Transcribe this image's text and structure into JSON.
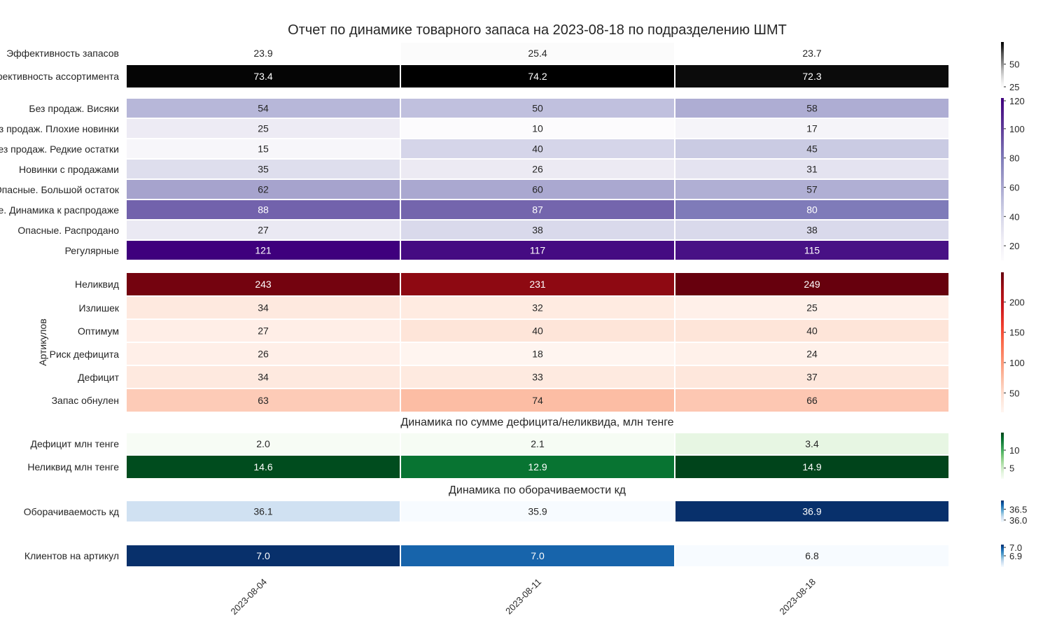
{
  "chart_data": {
    "type": "heatmap",
    "title": "Отчет по динамике товарного запаса на 2023-08-18 по подразделению ШМТ",
    "columns": [
      "2023-08-04",
      "2023-08-11",
      "2023-08-18"
    ],
    "blocks": [
      {
        "name": "efficiency",
        "colormap": "Greys",
        "vmin": 23.7,
        "vmax": 74.2,
        "colorbar_ticks": [
          "25",
          "50"
        ],
        "rows": [
          {
            "label": "Эффективность запасов",
            "values": [
              23.9,
              25.4,
              23.7
            ],
            "display": [
              "23.9",
              "25.4",
              "23.7"
            ]
          },
          {
            "label": "Эффективность ассортимента",
            "values": [
              73.4,
              74.2,
              72.3
            ],
            "display": [
              "73.4",
              "74.2",
              "72.3"
            ]
          }
        ]
      },
      {
        "name": "categories",
        "colormap": "Purples",
        "vmin": 10,
        "vmax": 121,
        "colorbar_ticks": [
          "20",
          "40",
          "60",
          "80",
          "100",
          "120"
        ],
        "rows": [
          {
            "label": "Без продаж. Висяки",
            "values": [
              54,
              50,
              58
            ],
            "display": [
              "54",
              "50",
              "58"
            ]
          },
          {
            "label": "Без продаж. Плохие новинки",
            "values": [
              25,
              10,
              17
            ],
            "display": [
              "25",
              "10",
              "17"
            ]
          },
          {
            "label": "Без продаж. Редкие остатки",
            "values": [
              15,
              40,
              45
            ],
            "display": [
              "15",
              "40",
              "45"
            ]
          },
          {
            "label": "Новинки с продажами",
            "values": [
              35,
              26,
              31
            ],
            "display": [
              "35",
              "26",
              "31"
            ]
          },
          {
            "label": "Опасные. Большой остаток",
            "values": [
              62,
              60,
              57
            ],
            "display": [
              "62",
              "60",
              "57"
            ]
          },
          {
            "label": "Опасные. Динамика к распродаже",
            "values": [
              88,
              87,
              80
            ],
            "display": [
              "88",
              "87",
              "80"
            ]
          },
          {
            "label": "Опасные. Распродано",
            "values": [
              27,
              38,
              38
            ],
            "display": [
              "27",
              "38",
              "38"
            ]
          },
          {
            "label": "Регулярные",
            "values": [
              121,
              117,
              115
            ],
            "display": [
              "121",
              "117",
              "115"
            ]
          }
        ]
      },
      {
        "name": "articles",
        "colormap": "Reds",
        "ylabel": "Артикулов",
        "vmin": 18,
        "vmax": 249,
        "colorbar_ticks": [
          "50",
          "100",
          "150",
          "200"
        ],
        "rows": [
          {
            "label": "Неликвид",
            "values": [
              243,
              231,
              249
            ],
            "display": [
              "243",
              "231",
              "249"
            ]
          },
          {
            "label": "Излишек",
            "values": [
              34,
              32,
              25
            ],
            "display": [
              "34",
              "32",
              "25"
            ]
          },
          {
            "label": "Оптимум",
            "values": [
              27,
              40,
              40
            ],
            "display": [
              "27",
              "40",
              "40"
            ]
          },
          {
            "label": "Риск дефицита",
            "values": [
              26,
              18,
              24
            ],
            "display": [
              "26",
              "18",
              "24"
            ]
          },
          {
            "label": "Дефицит",
            "values": [
              34,
              33,
              37
            ],
            "display": [
              "34",
              "33",
              "37"
            ]
          },
          {
            "label": "Запас обнулен",
            "values": [
              63,
              74,
              66
            ],
            "display": [
              "63",
              "74",
              "66"
            ]
          }
        ]
      },
      {
        "name": "money",
        "colormap": "Greens",
        "subtitle": "Динамика по сумме дефицита/неликвида, млн тенге",
        "vmin": 2.0,
        "vmax": 14.9,
        "colorbar_ticks": [
          "5",
          "10"
        ],
        "rows": [
          {
            "label": "Дефицит млн тенге",
            "values": [
              2.0,
              2.1,
              3.4
            ],
            "display": [
              "2.0",
              "2.1",
              "3.4"
            ]
          },
          {
            "label": "Неликвид млн тенге",
            "values": [
              14.6,
              12.9,
              14.9
            ],
            "display": [
              "14.6",
              "12.9",
              "14.9"
            ]
          }
        ]
      },
      {
        "name": "turnover",
        "colormap": "Blues",
        "subtitle": "Динамика по оборачиваемости кд",
        "vmin": 35.9,
        "vmax": 36.9,
        "colorbar_ticks": [
          "36.0",
          "36.5"
        ],
        "rows": [
          {
            "label": "Оборачиваемость кд",
            "values": [
              36.1,
              35.9,
              36.9
            ],
            "display": [
              "36.1",
              "35.9",
              "36.9"
            ]
          }
        ]
      },
      {
        "name": "clients",
        "colormap": "Blues",
        "vmin": 6.8,
        "vmax": 7.0,
        "colorbar_ticks": [
          "6.9",
          "7.0"
        ],
        "rows": [
          {
            "label": "Клиентов на артикул",
            "values": [
              7.0,
              6.96,
              6.8
            ],
            "display": [
              "7.0",
              "7.0",
              "6.8"
            ]
          }
        ]
      }
    ]
  }
}
